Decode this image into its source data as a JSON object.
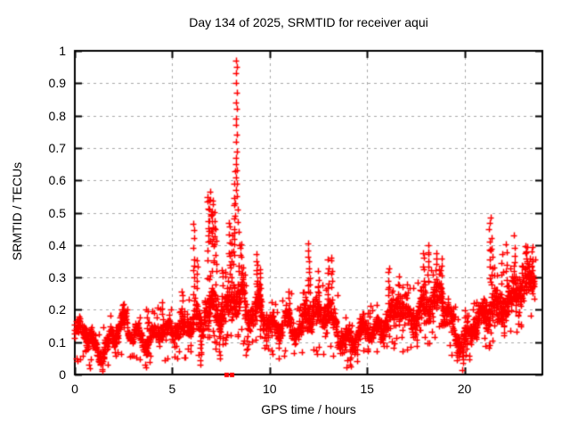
{
  "chart_data": {
    "type": "scatter",
    "title": "Day 134 of 2025, SRMTID for receiver aqui",
    "xlabel": "GPS time / hours",
    "ylabel": "SRMTID / TECUs",
    "xlim": [
      0,
      24
    ],
    "ylim": [
      0,
      1
    ],
    "xticks": [
      {
        "value": 0,
        "label": "0"
      },
      {
        "value": 5,
        "label": "5"
      },
      {
        "value": 10,
        "label": "10"
      },
      {
        "value": 15,
        "label": "15"
      },
      {
        "value": 20,
        "label": "20"
      }
    ],
    "yticks": [
      {
        "value": 0,
        "label": "0"
      },
      {
        "value": 0.1,
        "label": "0.1"
      },
      {
        "value": 0.2,
        "label": "0.2"
      },
      {
        "value": 0.3,
        "label": "0.3"
      },
      {
        "value": 0.4,
        "label": "0.4"
      },
      {
        "value": 0.5,
        "label": "0.5"
      },
      {
        "value": 0.6,
        "label": "0.6"
      },
      {
        "value": 0.7,
        "label": "0.7"
      },
      {
        "value": 0.8,
        "label": "0.8"
      },
      {
        "value": 0.9,
        "label": "0.9"
      },
      {
        "value": 1,
        "label": "1"
      }
    ],
    "grid": true,
    "legend": "none",
    "series_name": "SRMTID",
    "marker": "plus",
    "marker_color": "#ff0000",
    "grid_color": "#a8a8a8",
    "axis_color": "#000000",
    "peak": {
      "x": 8.3,
      "y": 0.97
    },
    "bands": [
      [
        0.0,
        0.3,
        34,
        0.09,
        0.16
      ],
      [
        0.3,
        0.6,
        34,
        0.1,
        0.17
      ],
      [
        0.6,
        0.9,
        34,
        0.07,
        0.14
      ],
      [
        0.9,
        1.2,
        34,
        0.05,
        0.12
      ],
      [
        1.2,
        1.5,
        34,
        0.04,
        0.11
      ],
      [
        1.5,
        1.8,
        34,
        0.06,
        0.13
      ],
      [
        1.8,
        2.1,
        34,
        0.08,
        0.16
      ],
      [
        2.1,
        2.4,
        34,
        0.1,
        0.17
      ],
      [
        2.4,
        2.7,
        34,
        0.11,
        0.19
      ],
      [
        2.7,
        3.0,
        34,
        0.09,
        0.16
      ],
      [
        3.0,
        3.3,
        34,
        0.1,
        0.17
      ],
      [
        3.3,
        3.6,
        34,
        0.08,
        0.15
      ],
      [
        3.6,
        3.9,
        34,
        0.07,
        0.15
      ],
      [
        3.9,
        4.2,
        34,
        0.08,
        0.16
      ],
      [
        4.2,
        4.5,
        34,
        0.09,
        0.17
      ],
      [
        4.5,
        4.8,
        34,
        0.08,
        0.16
      ],
      [
        4.8,
        5.1,
        34,
        0.09,
        0.17
      ],
      [
        5.1,
        5.4,
        34,
        0.1,
        0.19
      ],
      [
        5.4,
        5.7,
        34,
        0.1,
        0.2
      ],
      [
        5.7,
        6.0,
        34,
        0.11,
        0.21
      ],
      [
        6.0,
        6.3,
        36,
        0.11,
        0.23
      ],
      [
        6.3,
        6.6,
        36,
        0.08,
        0.2
      ],
      [
        6.6,
        6.9,
        38,
        0.12,
        0.26
      ],
      [
        6.9,
        7.2,
        40,
        0.14,
        0.3
      ],
      [
        7.2,
        7.5,
        40,
        0.12,
        0.28
      ],
      [
        7.5,
        7.8,
        40,
        0.13,
        0.28
      ],
      [
        7.8,
        8.1,
        38,
        0.15,
        0.3
      ],
      [
        8.1,
        8.4,
        38,
        0.16,
        0.32
      ],
      [
        8.4,
        8.7,
        36,
        0.14,
        0.3
      ],
      [
        8.7,
        9.0,
        34,
        0.11,
        0.23
      ],
      [
        9.0,
        9.3,
        36,
        0.12,
        0.26
      ],
      [
        9.3,
        9.6,
        38,
        0.15,
        0.3
      ],
      [
        9.6,
        9.9,
        36,
        0.13,
        0.26
      ],
      [
        9.9,
        10.2,
        34,
        0.1,
        0.2
      ],
      [
        10.2,
        10.5,
        34,
        0.09,
        0.18
      ],
      [
        10.5,
        10.8,
        34,
        0.1,
        0.19
      ],
      [
        10.8,
        11.1,
        34,
        0.11,
        0.21
      ],
      [
        11.1,
        11.4,
        34,
        0.1,
        0.2
      ],
      [
        11.4,
        11.7,
        34,
        0.09,
        0.19
      ],
      [
        11.7,
        12.0,
        38,
        0.13,
        0.27
      ],
      [
        12.0,
        12.3,
        38,
        0.12,
        0.26
      ],
      [
        12.3,
        12.6,
        36,
        0.11,
        0.24
      ],
      [
        12.6,
        12.9,
        36,
        0.11,
        0.24
      ],
      [
        12.9,
        13.2,
        36,
        0.12,
        0.25
      ],
      [
        13.2,
        13.5,
        34,
        0.1,
        0.21
      ],
      [
        13.5,
        13.8,
        34,
        0.08,
        0.17
      ],
      [
        13.8,
        14.1,
        34,
        0.07,
        0.16
      ],
      [
        14.1,
        14.4,
        34,
        0.06,
        0.15
      ],
      [
        14.4,
        14.7,
        34,
        0.07,
        0.16
      ],
      [
        14.7,
        15.0,
        34,
        0.08,
        0.17
      ],
      [
        15.0,
        15.3,
        34,
        0.09,
        0.18
      ],
      [
        15.3,
        15.6,
        34,
        0.1,
        0.19
      ],
      [
        15.6,
        15.9,
        34,
        0.1,
        0.2
      ],
      [
        15.9,
        16.2,
        36,
        0.12,
        0.24
      ],
      [
        16.2,
        16.5,
        36,
        0.12,
        0.25
      ],
      [
        16.5,
        16.8,
        36,
        0.14,
        0.27
      ],
      [
        16.8,
        17.1,
        36,
        0.12,
        0.25
      ],
      [
        17.1,
        17.4,
        34,
        0.11,
        0.23
      ],
      [
        17.4,
        17.7,
        36,
        0.12,
        0.26
      ],
      [
        17.7,
        18.0,
        38,
        0.14,
        0.29
      ],
      [
        18.0,
        18.3,
        38,
        0.14,
        0.3
      ],
      [
        18.3,
        18.6,
        38,
        0.15,
        0.3
      ],
      [
        18.6,
        18.9,
        38,
        0.16,
        0.31
      ],
      [
        18.9,
        19.2,
        36,
        0.12,
        0.25
      ],
      [
        19.2,
        19.5,
        34,
        0.1,
        0.22
      ],
      [
        19.5,
        19.8,
        34,
        0.07,
        0.17
      ],
      [
        19.8,
        20.1,
        34,
        0.06,
        0.16
      ],
      [
        20.1,
        20.4,
        34,
        0.08,
        0.18
      ],
      [
        20.4,
        20.7,
        34,
        0.1,
        0.2
      ],
      [
        20.7,
        21.0,
        34,
        0.11,
        0.21
      ],
      [
        21.0,
        21.3,
        36,
        0.12,
        0.25
      ],
      [
        21.3,
        21.6,
        38,
        0.14,
        0.3
      ],
      [
        21.6,
        21.9,
        38,
        0.13,
        0.29
      ],
      [
        21.9,
        22.2,
        38,
        0.14,
        0.3
      ],
      [
        22.2,
        22.5,
        38,
        0.15,
        0.31
      ],
      [
        22.5,
        22.8,
        38,
        0.16,
        0.33
      ],
      [
        22.8,
        23.1,
        38,
        0.18,
        0.35
      ],
      [
        23.1,
        23.4,
        40,
        0.22,
        0.38
      ],
      [
        23.4,
        23.65,
        30,
        0.24,
        0.39
      ]
    ],
    "streaks": [
      [
        2.5,
        0.16,
        0.21,
        5
      ],
      [
        3.7,
        0.15,
        0.21,
        5
      ],
      [
        4.5,
        0.15,
        0.22,
        5
      ],
      [
        5.5,
        0.18,
        0.26,
        6
      ],
      [
        6.1,
        0.22,
        0.46,
        11
      ],
      [
        6.27,
        0.26,
        0.36,
        5
      ],
      [
        6.45,
        0.03,
        0.1,
        7
      ],
      [
        6.85,
        0.36,
        0.55,
        9
      ],
      [
        6.95,
        0.42,
        0.56,
        10
      ],
      [
        7.05,
        0.4,
        0.54,
        9
      ],
      [
        7.15,
        0.34,
        0.5,
        8
      ],
      [
        7.25,
        0.28,
        0.44,
        6
      ],
      [
        7.42,
        0.04,
        0.12,
        6
      ],
      [
        7.55,
        0.2,
        0.32,
        6
      ],
      [
        7.95,
        0.32,
        0.47,
        8
      ],
      [
        8.05,
        0.28,
        0.43,
        6
      ],
      [
        8.18,
        0.34,
        0.62,
        9
      ],
      [
        8.55,
        0.26,
        0.41,
        7
      ],
      [
        8.75,
        0.18,
        0.31,
        6
      ],
      [
        9.35,
        0.24,
        0.37,
        8
      ],
      [
        9.5,
        0.24,
        0.33,
        7
      ],
      [
        11.0,
        0.17,
        0.25,
        5
      ],
      [
        12.0,
        0.26,
        0.4,
        9
      ],
      [
        12.05,
        0.2,
        0.33,
        6
      ],
      [
        12.5,
        0.2,
        0.32,
        7
      ],
      [
        13.0,
        0.22,
        0.35,
        7
      ],
      [
        13.2,
        0.24,
        0.37,
        7
      ],
      [
        14.15,
        0.02,
        0.07,
        5
      ],
      [
        16.1,
        0.22,
        0.33,
        7
      ],
      [
        16.6,
        0.22,
        0.3,
        6
      ],
      [
        17.9,
        0.26,
        0.38,
        7
      ],
      [
        18.15,
        0.28,
        0.4,
        8
      ],
      [
        18.55,
        0.26,
        0.37,
        7
      ],
      [
        18.8,
        0.26,
        0.36,
        6
      ],
      [
        19.9,
        0.02,
        0.08,
        5
      ],
      [
        21.3,
        0.28,
        0.49,
        10
      ],
      [
        21.42,
        0.24,
        0.43,
        7
      ],
      [
        21.9,
        0.22,
        0.38,
        6
      ],
      [
        22.15,
        0.24,
        0.4,
        7
      ],
      [
        22.55,
        0.26,
        0.42,
        7
      ],
      [
        23.2,
        0.28,
        0.4,
        7
      ],
      [
        23.5,
        0.28,
        0.4,
        6
      ]
    ],
    "peak_points": [
      [
        8.28,
        0.97
      ],
      [
        8.31,
        0.95
      ],
      [
        8.29,
        0.93
      ],
      [
        8.27,
        0.9
      ],
      [
        8.3,
        0.87
      ],
      [
        8.28,
        0.84
      ],
      [
        8.31,
        0.82
      ],
      [
        8.29,
        0.79
      ],
      [
        8.27,
        0.77
      ],
      [
        8.3,
        0.74
      ],
      [
        8.28,
        0.72
      ],
      [
        8.31,
        0.69
      ],
      [
        8.29,
        0.67
      ],
      [
        8.27,
        0.65
      ],
      [
        8.3,
        0.63
      ],
      [
        8.28,
        0.61
      ],
      [
        8.32,
        0.59
      ],
      [
        8.26,
        0.57
      ],
      [
        8.3,
        0.55
      ],
      [
        8.24,
        0.53
      ],
      [
        8.35,
        0.51
      ],
      [
        8.22,
        0.49
      ],
      [
        8.38,
        0.47
      ],
      [
        8.2,
        0.45
      ],
      [
        8.4,
        0.44
      ],
      [
        8.16,
        0.42
      ],
      [
        8.44,
        0.4
      ],
      [
        8.12,
        0.38
      ],
      [
        8.48,
        0.37
      ]
    ],
    "zero_markers": {
      "marker": "filled-square",
      "x": [
        7.77,
        8.05
      ],
      "y": 0
    }
  }
}
